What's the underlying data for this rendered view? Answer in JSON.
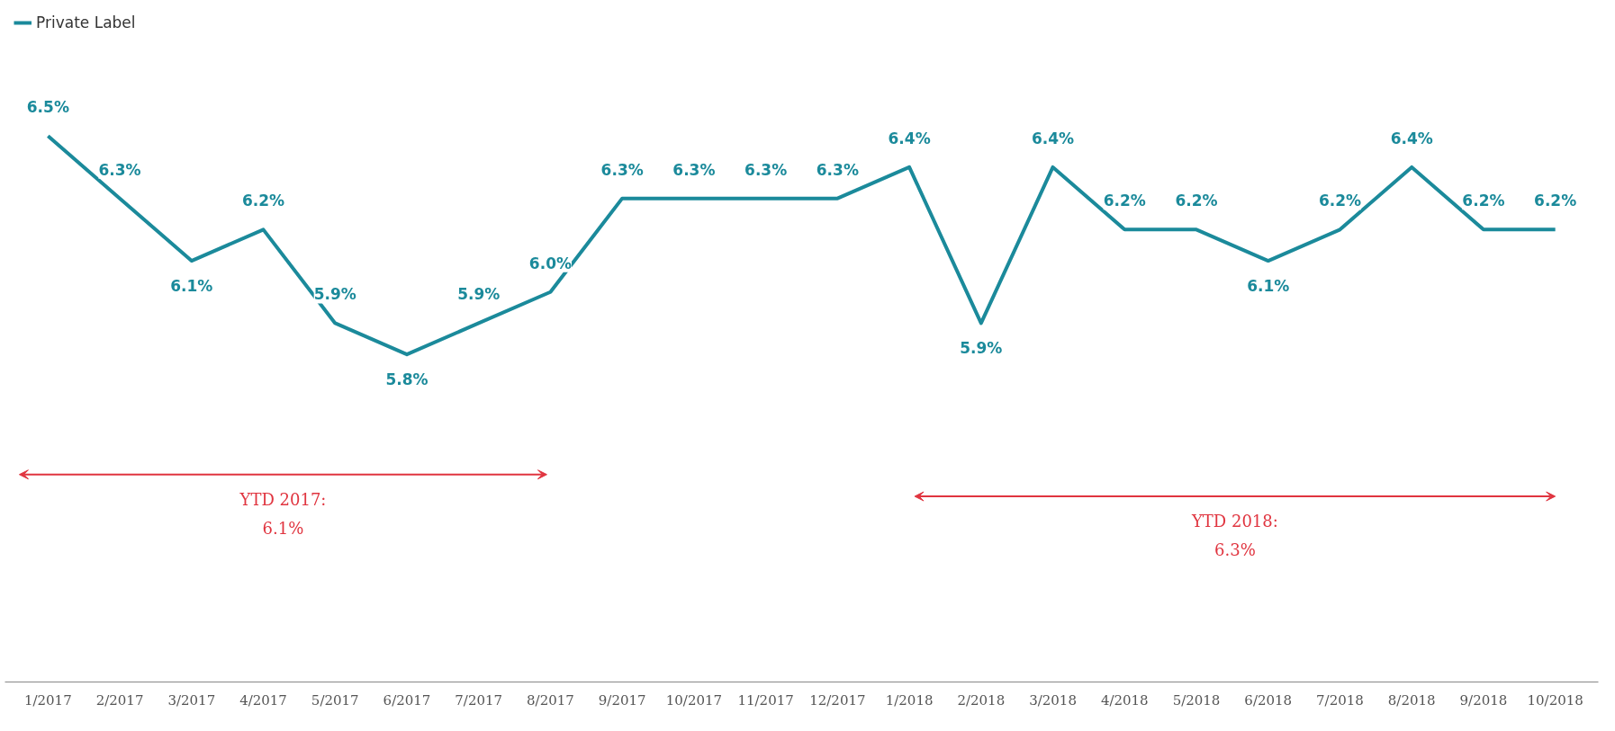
{
  "chart_data": {
    "type": "line",
    "categories": [
      "1/2017",
      "2/2017",
      "3/2017",
      "4/2017",
      "5/2017",
      "6/2017",
      "7/2017",
      "8/2017",
      "9/2017",
      "10/2017",
      "11/2017",
      "12/2017",
      "1/2018",
      "2/2018",
      "3/2018",
      "4/2018",
      "5/2018",
      "6/2018",
      "7/2018",
      "8/2018",
      "9/2018",
      "10/2018"
    ],
    "series": [
      {
        "name": "Private Label",
        "color": "#1b8a9b",
        "values": [
          6.5,
          6.3,
          6.1,
          6.2,
          5.9,
          5.8,
          5.9,
          6.0,
          6.3,
          6.3,
          6.3,
          6.3,
          6.4,
          5.9,
          6.4,
          6.2,
          6.2,
          6.1,
          6.2,
          6.4,
          6.2,
          6.2
        ],
        "value_labels": [
          "6.5%",
          "6.3%",
          "6.1%",
          "6.2%",
          "5.9%",
          "5.8%",
          "5.9%",
          "6.0%",
          "6.3%",
          "6.3%",
          "6.3%",
          "6.3%",
          "6.4%",
          "5.9%",
          "6.4%",
          "6.2%",
          "6.2%",
          "6.1%",
          "6.2%",
          "6.4%",
          "6.2%",
          "6.2%"
        ]
      }
    ],
    "annotations": [
      "YTD 2017:\n6.1%",
      "YTD 2018:\n6.3%"
    ],
    "legend": "top left",
    "grid": false,
    "marker": "none",
    "line_style": "solid"
  }
}
